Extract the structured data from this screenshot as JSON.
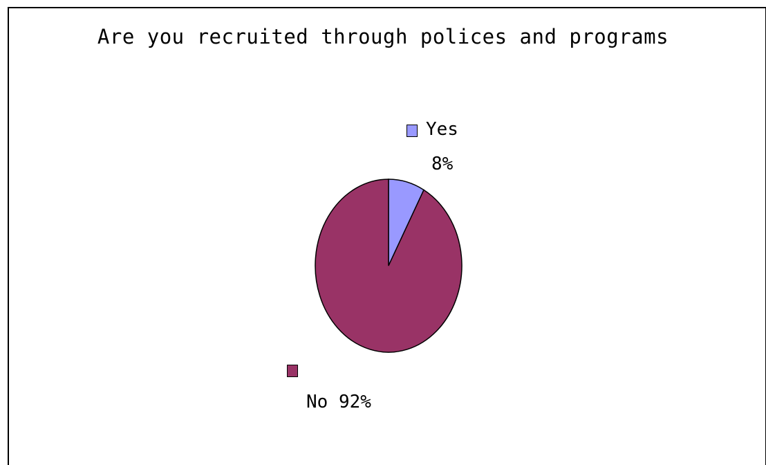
{
  "chart_data": {
    "type": "pie",
    "title": "Are you recruited through polices and programs",
    "slices": [
      {
        "name": "Yes",
        "value": 8,
        "label": "8%",
        "color": "#9999ff"
      },
      {
        "name": "No",
        "value": 92,
        "label": "92%",
        "color": "#993366"
      }
    ],
    "start_angle_deg": 0,
    "direction": "clockwise",
    "legend": "inline with data labels"
  }
}
